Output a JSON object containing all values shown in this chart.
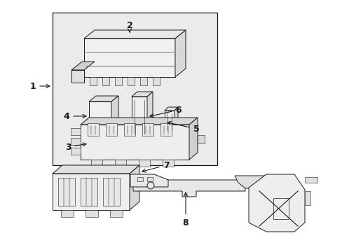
{
  "bg_color": "#ffffff",
  "box_bg": "#ebebeb",
  "line_color": "#1a1a1a",
  "lw": 0.7,
  "fig_w": 4.89,
  "fig_h": 3.6,
  "dpi": 100
}
